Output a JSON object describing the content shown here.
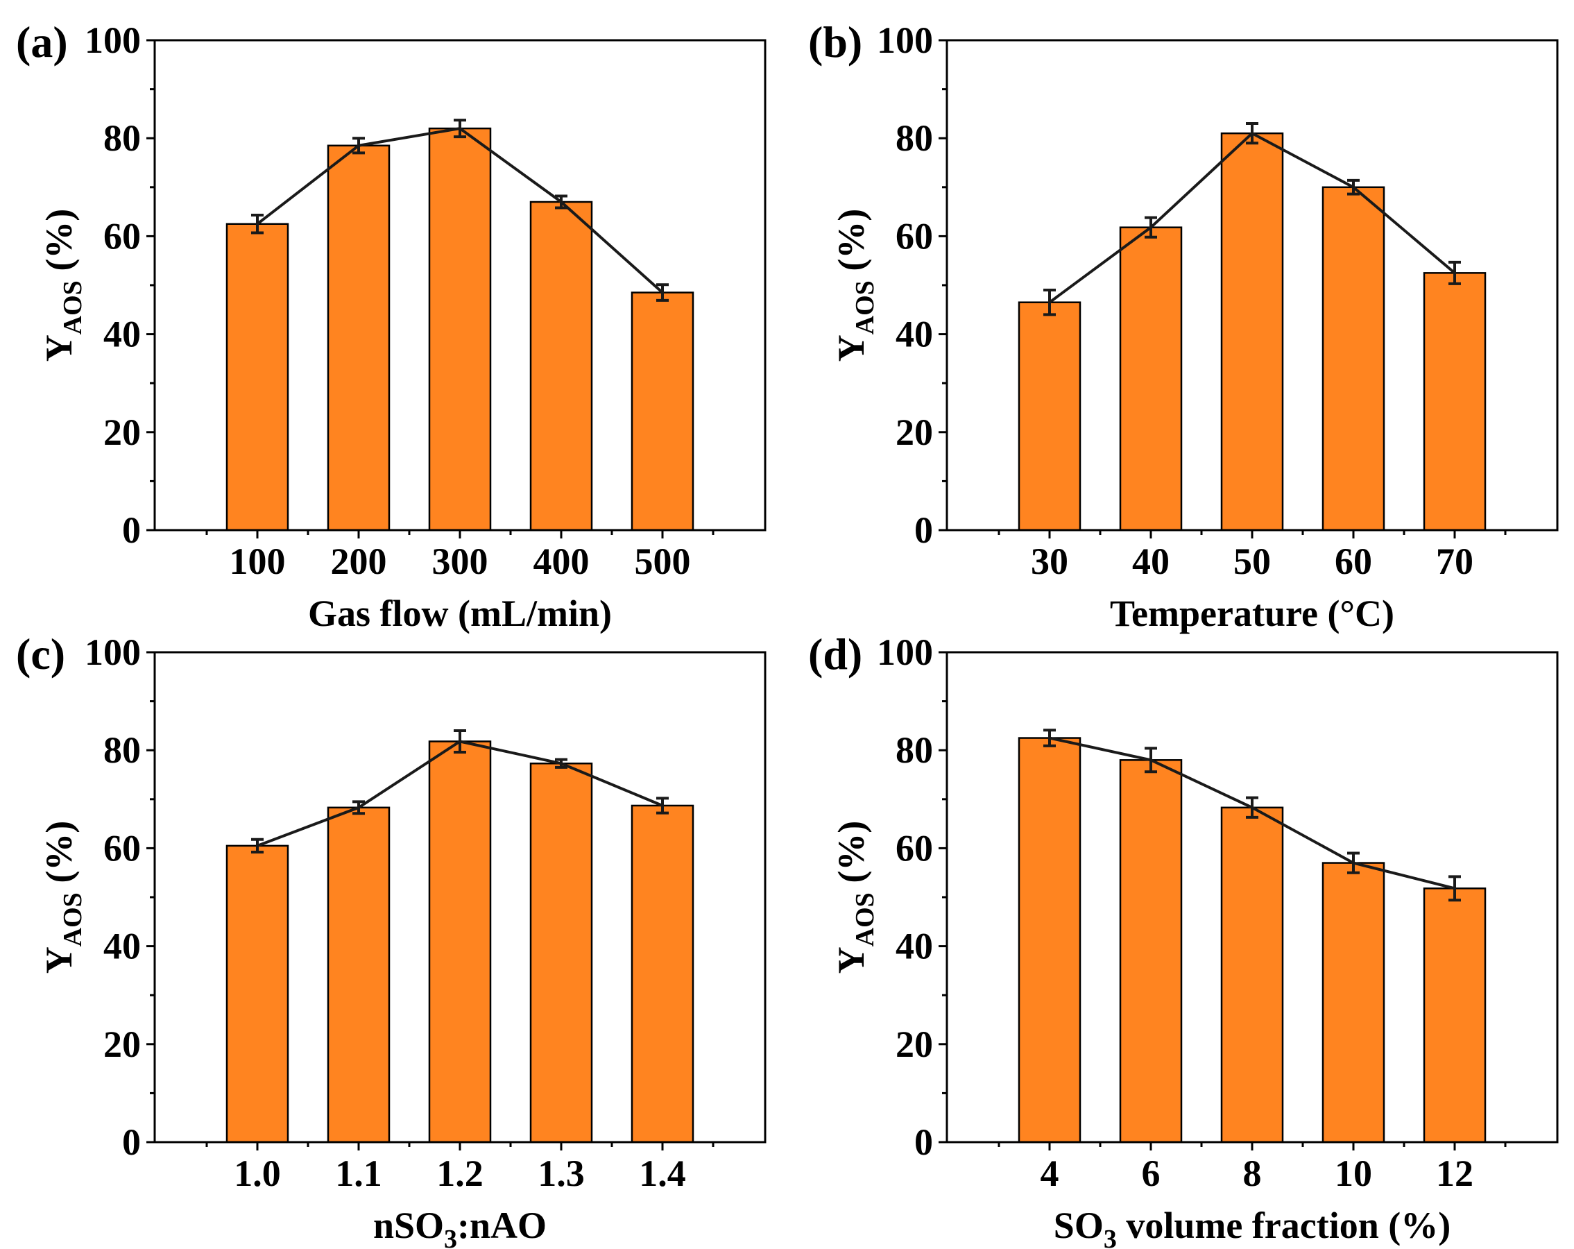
{
  "colors": {
    "bar": "#ff8420",
    "line": "#1a1a1a",
    "axis": "#000000"
  },
  "chart_data": [
    {
      "panel_label": "(a)",
      "type": "bar",
      "categories": [
        "100",
        "200",
        "300",
        "400",
        "500"
      ],
      "values": [
        62.5,
        78.5,
        82.0,
        67.0,
        48.5
      ],
      "errors": [
        1.8,
        1.5,
        1.7,
        1.2,
        1.6
      ],
      "line_overlay": true,
      "xlabel": "Gas flow (mL/min)",
      "ylabel": {
        "main": "Y",
        "sub": "AOS",
        "rest": " (%)"
      },
      "ylim": [
        0,
        100
      ],
      "yticks": [
        0,
        20,
        40,
        60,
        80,
        100
      ],
      "grid": false
    },
    {
      "panel_label": "(b)",
      "type": "bar",
      "categories": [
        "30",
        "40",
        "50",
        "60",
        "70"
      ],
      "values": [
        46.5,
        61.8,
        81.0,
        70.0,
        52.5
      ],
      "errors": [
        2.5,
        2.0,
        2.0,
        1.4,
        2.2
      ],
      "line_overlay": true,
      "xlabel": "Temperature (°C)",
      "ylabel": {
        "main": "Y",
        "sub": "AOS",
        "rest": " (%)"
      },
      "ylim": [
        0,
        100
      ],
      "yticks": [
        0,
        20,
        40,
        60,
        80,
        100
      ],
      "grid": false
    },
    {
      "panel_label": "(c)",
      "type": "bar",
      "categories": [
        "1.0",
        "1.1",
        "1.2",
        "1.3",
        "1.4"
      ],
      "values": [
        60.5,
        68.3,
        81.8,
        77.3,
        68.7
      ],
      "errors": [
        1.3,
        1.2,
        2.2,
        0.8,
        1.5
      ],
      "line_overlay": true,
      "xlabel": {
        "parts": [
          "nSO",
          "3",
          ":nAO"
        ]
      },
      "ylabel": {
        "main": "Y",
        "sub": "AOS",
        "rest": " (%)"
      },
      "ylim": [
        0,
        100
      ],
      "yticks": [
        0,
        20,
        40,
        60,
        80,
        100
      ],
      "grid": false
    },
    {
      "panel_label": "(d)",
      "type": "bar",
      "categories": [
        "4",
        "6",
        "8",
        "10",
        "12"
      ],
      "values": [
        82.5,
        78.0,
        68.3,
        57.0,
        51.8
      ],
      "errors": [
        1.6,
        2.4,
        2.0,
        2.0,
        2.4
      ],
      "line_overlay": true,
      "xlabel": {
        "parts": [
          "SO",
          "3",
          " volume fraction (%)"
        ]
      },
      "ylabel": {
        "main": "Y",
        "sub": "AOS",
        "rest": " (%)"
      },
      "ylim": [
        0,
        100
      ],
      "yticks": [
        0,
        20,
        40,
        60,
        80,
        100
      ],
      "grid": false
    }
  ]
}
